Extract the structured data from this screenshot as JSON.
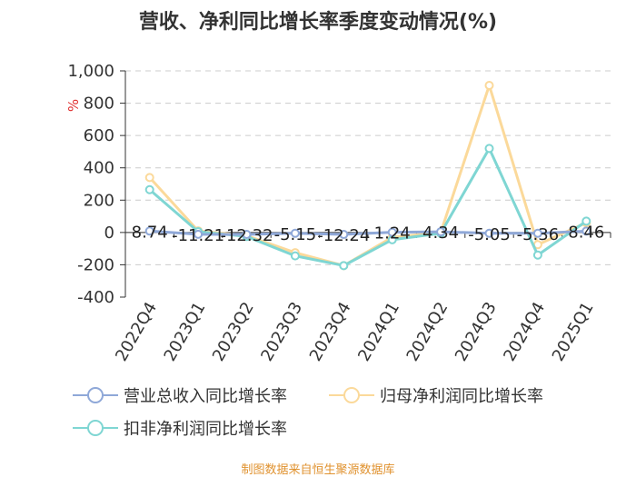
{
  "chart_data": {
    "type": "line",
    "title": "营收、净利同比增长率季度变动情况(%)",
    "ylabel": "%",
    "xlabel": "",
    "ylim": [
      -400,
      1000
    ],
    "yticks": [
      "1,000",
      "800",
      "600",
      "400",
      "200",
      "0",
      "-200",
      "-400"
    ],
    "ytick_values": [
      1000,
      800,
      600,
      400,
      200,
      0,
      -200,
      -400
    ],
    "categories": [
      "2022Q4",
      "2023Q1",
      "2023Q2",
      "2023Q3",
      "2023Q4",
      "2024Q1",
      "2024Q2",
      "2024Q3",
      "2024Q4",
      "2025Q1"
    ],
    "series": [
      {
        "name": "营业总收入同比增长率",
        "color": "#8fa8d8",
        "values": [
          8.74,
          -11.21,
          -12.32,
          -5.15,
          -12.24,
          1.24,
          4.34,
          -5.05,
          -5.36,
          8.46
        ],
        "labels": [
          "8.74",
          "-11.21",
          "-12.32",
          "-5.15",
          "-12.24",
          "1.24",
          "4.34",
          "-5.05",
          "-5.36",
          "8.46"
        ]
      },
      {
        "name": "归母净利润同比增长率",
        "color": "#fbd99a",
        "values": [
          340,
          10,
          -20,
          -125,
          -205,
          -30,
          0,
          910,
          -75,
          60
        ]
      },
      {
        "name": "扣非净利润同比增长率",
        "color": "#7fd6d3",
        "values": [
          265,
          5,
          -25,
          -145,
          -205,
          -45,
          -5,
          520,
          -140,
          70
        ]
      }
    ],
    "grid": true
  },
  "source": "制图数据来自恒生聚源数据库"
}
